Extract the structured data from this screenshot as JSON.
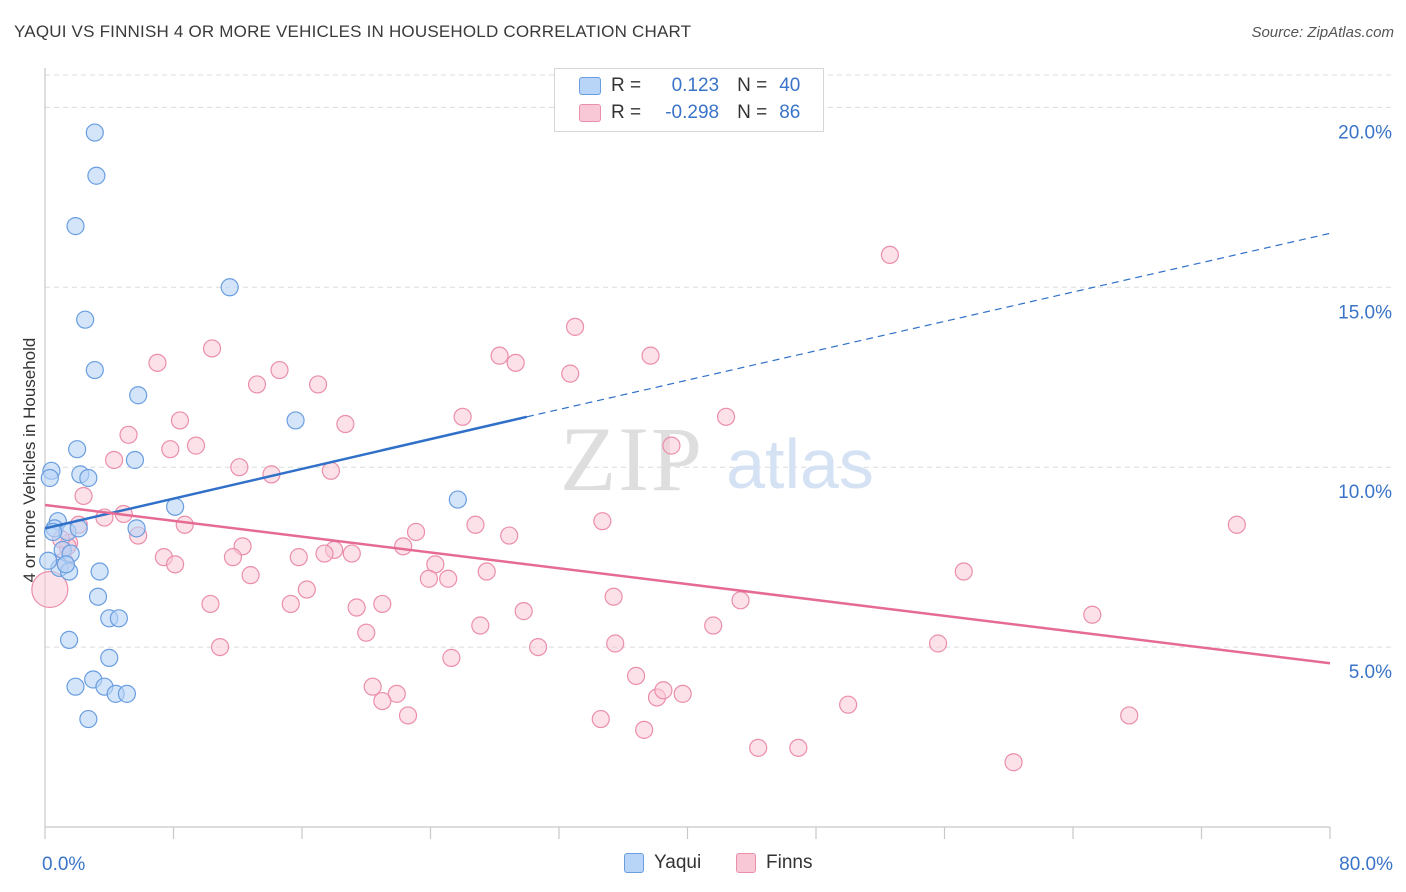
{
  "title": "YAQUI VS FINNISH 4 OR MORE VEHICLES IN HOUSEHOLD CORRELATION CHART",
  "source": "Source: ZipAtlas.com",
  "watermark": {
    "zip": "ZIP",
    "atlas": "atlas"
  },
  "legend": {
    "rows": [
      {
        "r_label": "R =",
        "r_value": "0.123",
        "n_label": "N =",
        "n_value": "40"
      },
      {
        "r_label": "R =",
        "r_value": "-0.298",
        "n_label": "N =",
        "n_value": "86"
      }
    ]
  },
  "bottom_legend": {
    "yaqui": "Yaqui",
    "finns": "Finns"
  },
  "colors": {
    "yaqui_fill": "#b8d4f6",
    "yaqui_stroke": "#6a9ee0",
    "yaqui_line": "#3070c8",
    "finns_fill": "#f9c8d6",
    "finns_stroke": "#eb8eaa",
    "finns_line": "#e56b95",
    "tick_label": "#3a74c8",
    "grid": "#dcdcdc"
  },
  "chart_data": {
    "type": "scatter",
    "title": "YAQUI VS FINNISH 4 OR MORE VEHICLES IN HOUSEHOLD CORRELATION CHART",
    "xlabel": "",
    "ylabel": "4 or more Vehicles in Household",
    "xlim": [
      0,
      80
    ],
    "ylim": [
      0,
      20.9
    ],
    "x_tick_labels": [
      "0.0%",
      "80.0%"
    ],
    "y_ticks": [
      5,
      10,
      15,
      20
    ],
    "y_tick_labels": [
      "5.0%",
      "10.0%",
      "15.0%",
      "20.0%"
    ],
    "grid": "horizontal dashed",
    "series": [
      {
        "name": "Yaqui",
        "points": [
          [
            3.1,
            19.3
          ],
          [
            3.2,
            18.1
          ],
          [
            1.9,
            16.7
          ],
          [
            11.5,
            15.0
          ],
          [
            2.5,
            14.1
          ],
          [
            3.1,
            12.7
          ],
          [
            5.8,
            12.0
          ],
          [
            15.6,
            11.3
          ],
          [
            2.0,
            10.5
          ],
          [
            5.6,
            10.2
          ],
          [
            0.4,
            9.9
          ],
          [
            0.3,
            9.7
          ],
          [
            2.2,
            9.8
          ],
          [
            2.7,
            9.7
          ],
          [
            8.1,
            8.9
          ],
          [
            25.7,
            9.1
          ],
          [
            0.8,
            8.5
          ],
          [
            0.6,
            8.3
          ],
          [
            1.4,
            8.2
          ],
          [
            2.1,
            8.3
          ],
          [
            5.7,
            8.3
          ],
          [
            1.1,
            7.7
          ],
          [
            1.6,
            7.6
          ],
          [
            0.9,
            7.2
          ],
          [
            1.5,
            7.1
          ],
          [
            3.4,
            7.1
          ],
          [
            3.3,
            6.4
          ],
          [
            4.0,
            5.8
          ],
          [
            4.6,
            5.8
          ],
          [
            1.5,
            5.2
          ],
          [
            4.0,
            4.7
          ],
          [
            3.0,
            4.1
          ],
          [
            1.9,
            3.9
          ],
          [
            3.7,
            3.9
          ],
          [
            4.4,
            3.7
          ],
          [
            5.1,
            3.7
          ],
          [
            2.7,
            3.0
          ],
          [
            0.2,
            7.4
          ],
          [
            1.3,
            7.3
          ],
          [
            0.5,
            8.2
          ]
        ],
        "trend": {
          "x": [
            0,
            30
          ],
          "y": [
            8.3,
            11.4
          ],
          "extended_to": [
            80,
            16.5
          ]
        }
      },
      {
        "name": "Finns",
        "points": [
          [
            52.6,
            15.9
          ],
          [
            33.0,
            13.9
          ],
          [
            10.4,
            13.3
          ],
          [
            28.3,
            13.1
          ],
          [
            37.7,
            13.1
          ],
          [
            29.3,
            12.9
          ],
          [
            32.7,
            12.6
          ],
          [
            7.0,
            12.9
          ],
          [
            14.6,
            12.7
          ],
          [
            13.2,
            12.3
          ],
          [
            17.0,
            12.3
          ],
          [
            42.4,
            11.4
          ],
          [
            26.0,
            11.4
          ],
          [
            8.4,
            11.3
          ],
          [
            18.7,
            11.2
          ],
          [
            5.2,
            10.9
          ],
          [
            39.0,
            10.6
          ],
          [
            7.8,
            10.5
          ],
          [
            9.4,
            10.6
          ],
          [
            4.3,
            10.2
          ],
          [
            12.1,
            10.0
          ],
          [
            14.1,
            9.8
          ],
          [
            17.8,
            9.9
          ],
          [
            2.4,
            9.2
          ],
          [
            4.9,
            8.7
          ],
          [
            3.7,
            8.6
          ],
          [
            8.7,
            8.4
          ],
          [
            26.8,
            8.4
          ],
          [
            34.7,
            8.5
          ],
          [
            74.2,
            8.4
          ],
          [
            2.1,
            8.4
          ],
          [
            1.5,
            7.9
          ],
          [
            5.8,
            8.1
          ],
          [
            23.1,
            8.2
          ],
          [
            28.9,
            8.1
          ],
          [
            22.3,
            7.8
          ],
          [
            12.3,
            7.8
          ],
          [
            15.8,
            7.5
          ],
          [
            18.0,
            7.7
          ],
          [
            7.4,
            7.5
          ],
          [
            11.7,
            7.5
          ],
          [
            19.1,
            7.6
          ],
          [
            17.4,
            7.6
          ],
          [
            8.1,
            7.3
          ],
          [
            24.3,
            7.3
          ],
          [
            27.5,
            7.1
          ],
          [
            12.8,
            7.0
          ],
          [
            23.9,
            6.9
          ],
          [
            25.1,
            6.9
          ],
          [
            1.2,
            7.4
          ],
          [
            57.2,
            7.1
          ],
          [
            16.3,
            6.6
          ],
          [
            10.3,
            6.2
          ],
          [
            15.3,
            6.2
          ],
          [
            19.4,
            6.1
          ],
          [
            21.0,
            6.2
          ],
          [
            35.4,
            6.4
          ],
          [
            43.3,
            6.3
          ],
          [
            29.8,
            6.0
          ],
          [
            65.2,
            5.9
          ],
          [
            27.1,
            5.6
          ],
          [
            41.6,
            5.6
          ],
          [
            20.0,
            5.4
          ],
          [
            35.5,
            5.1
          ],
          [
            55.6,
            5.1
          ],
          [
            10.9,
            5.0
          ],
          [
            30.7,
            5.0
          ],
          [
            25.3,
            4.7
          ],
          [
            36.8,
            4.2
          ],
          [
            20.4,
            3.9
          ],
          [
            21.9,
            3.7
          ],
          [
            21.0,
            3.5
          ],
          [
            38.1,
            3.6
          ],
          [
            38.5,
            3.8
          ],
          [
            39.7,
            3.7
          ],
          [
            50.0,
            3.4
          ],
          [
            34.6,
            3.0
          ],
          [
            22.6,
            3.1
          ],
          [
            67.5,
            3.1
          ],
          [
            37.3,
            2.7
          ],
          [
            44.4,
            2.2
          ],
          [
            46.9,
            2.2
          ],
          [
            60.3,
            1.8
          ],
          [
            0.3,
            6.6
          ],
          [
            1.4,
            7.8
          ],
          [
            1.0,
            8.0
          ]
        ],
        "trend": {
          "x": [
            0,
            80
          ],
          "y": [
            8.95,
            4.55
          ]
        }
      }
    ]
  }
}
